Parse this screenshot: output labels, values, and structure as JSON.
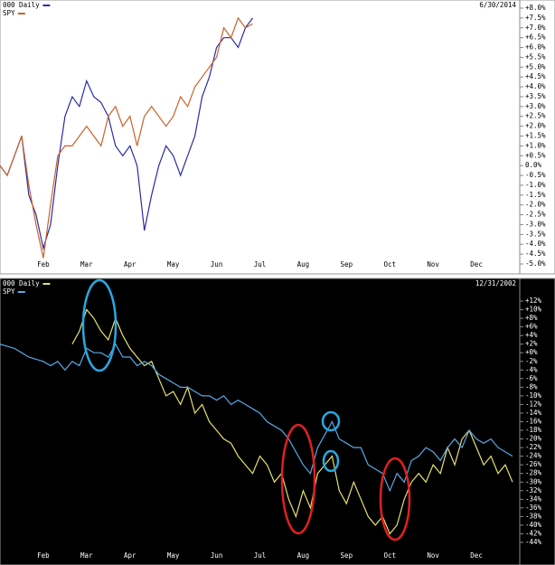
{
  "chart_data": [
    {
      "type": "line",
      "legend_title": "000 Daily",
      "date_label": "6/30/2014",
      "categories": [
        null,
        null,
        null,
        null,
        null,
        null,
        "Feb",
        "Feb",
        "Feb",
        "Feb",
        "Feb",
        "Feb",
        "Mar",
        "Mar",
        "Mar",
        "Mar",
        "Mar",
        "Mar",
        "Apr",
        "Apr",
        "Apr",
        "Apr",
        "Apr",
        "Apr",
        "May",
        "May",
        "May",
        "May",
        "May",
        "May",
        "Jun",
        "Jun",
        "Jun",
        "Jun",
        "Jun",
        "Jun",
        "Jul",
        "Jul",
        "Jul",
        "Jul",
        "Jul",
        "Jul",
        "Aug",
        "Aug",
        "Aug",
        "Aug",
        "Aug",
        "Aug",
        "Sep",
        "Sep",
        "Sep",
        "Sep",
        "Sep",
        "Sep",
        "Oct",
        "Oct",
        "Oct",
        "Oct",
        "Oct",
        "Oct",
        "Nov",
        "Nov",
        "Nov",
        "Nov",
        "Nov",
        "Nov",
        "Dec",
        "Dec",
        "Dec",
        "Dec",
        "Dec",
        "Dec"
      ],
      "series": [
        {
          "name": "000 Daily",
          "color": "#2b2ba6",
          "values": [
            0,
            -0.5,
            0.5,
            1.5,
            -1.5,
            -2.5,
            -4.2,
            -3.0,
            0,
            2.5,
            3.5,
            3.0,
            4.3,
            3.5,
            3.2,
            2.5,
            1.0,
            0.5,
            1.0,
            0.0,
            -3.3,
            -1.5,
            0.0,
            1.0,
            0.5,
            -0.5,
            0.5,
            1.5,
            3.5,
            4.5,
            6.0,
            6.5,
            6.5,
            6.0,
            7.0,
            7.5,
            null,
            null,
            null,
            null,
            null,
            null,
            null,
            null,
            null,
            null,
            null,
            null,
            null,
            null,
            null,
            null,
            null,
            null,
            null,
            null,
            null,
            null,
            null,
            null,
            null,
            null,
            null,
            null,
            null,
            null,
            null,
            null,
            null,
            null,
            null,
            null
          ]
        },
        {
          "name": "SPY",
          "color": "#c8622a",
          "values": [
            0,
            -0.5,
            0.5,
            1.5,
            -1.0,
            -3.0,
            -4.7,
            -2.0,
            0.5,
            1.0,
            1.0,
            1.5,
            2.0,
            1.5,
            1.0,
            2.5,
            3.0,
            2.0,
            2.5,
            1.0,
            2.5,
            3.0,
            2.5,
            2.0,
            2.5,
            3.5,
            3.0,
            4.0,
            4.5,
            5.0,
            5.5,
            7.0,
            6.5,
            7.5,
            7.0,
            7.2,
            null,
            null,
            null,
            null,
            null,
            null,
            null,
            null,
            null,
            null,
            null,
            null,
            null,
            null,
            null,
            null,
            null,
            null,
            null,
            null,
            null,
            null,
            null,
            null,
            null,
            null,
            null,
            null,
            null,
            null,
            null,
            null,
            null,
            null,
            null,
            null
          ]
        }
      ],
      "ylim": [
        -5.0,
        8.0
      ],
      "yticks": [
        {
          "value": 8.0,
          "label": "+8.0%"
        },
        {
          "value": 7.5,
          "label": "+7.5%"
        },
        {
          "value": 7.0,
          "label": "+7.0%"
        },
        {
          "value": 6.5,
          "label": "+6.5%"
        },
        {
          "value": 6.0,
          "label": "+6.0%"
        },
        {
          "value": 5.5,
          "label": "+5.5%"
        },
        {
          "value": 5.0,
          "label": "+5.0%"
        },
        {
          "value": 4.5,
          "label": "+4.5%"
        },
        {
          "value": 4.0,
          "label": "+4.0%"
        },
        {
          "value": 3.5,
          "label": "+3.5%"
        },
        {
          "value": 3.0,
          "label": "+3.0%"
        },
        {
          "value": 2.5,
          "label": "+2.5%"
        },
        {
          "value": 2.0,
          "label": "+2.0%"
        },
        {
          "value": 1.5,
          "label": "+1.5%"
        },
        {
          "value": 1.0,
          "label": "+1.0%"
        },
        {
          "value": 0.5,
          "label": "+0.5%"
        },
        {
          "value": 0,
          "label": "0.0%"
        },
        {
          "value": -0.5,
          "label": "-0.5%"
        },
        {
          "value": -1.0,
          "label": "-1.0%"
        },
        {
          "value": -1.5,
          "label": "-1.5%"
        },
        {
          "value": -2.0,
          "label": "-2.0%"
        },
        {
          "value": -2.5,
          "label": "-2.5%"
        },
        {
          "value": -3.0,
          "label": "-3.0%"
        },
        {
          "value": -3.5,
          "label": "-3.5%"
        },
        {
          "value": -4.0,
          "label": "-4.0%"
        },
        {
          "value": -4.5,
          "label": "-4.5%"
        },
        {
          "value": -5.0,
          "label": "-5.0%"
        }
      ],
      "background": "#ffffff",
      "text_color": "#000000"
    },
    {
      "type": "line",
      "legend_title": "000 Daily",
      "date_label": "12/31/2002",
      "categories": [
        null,
        null,
        null,
        null,
        null,
        null,
        "Feb",
        "Feb",
        "Feb",
        "Feb",
        "Feb",
        "Feb",
        "Mar",
        "Mar",
        "Mar",
        "Mar",
        "Mar",
        "Mar",
        "Apr",
        "Apr",
        "Apr",
        "Apr",
        "Apr",
        "Apr",
        "May",
        "May",
        "May",
        "May",
        "May",
        "May",
        "Jun",
        "Jun",
        "Jun",
        "Jun",
        "Jun",
        "Jun",
        "Jul",
        "Jul",
        "Jul",
        "Jul",
        "Jul",
        "Jul",
        "Aug",
        "Aug",
        "Aug",
        "Aug",
        "Aug",
        "Aug",
        "Sep",
        "Sep",
        "Sep",
        "Sep",
        "Sep",
        "Sep",
        "Oct",
        "Oct",
        "Oct",
        "Oct",
        "Oct",
        "Oct",
        "Nov",
        "Nov",
        "Nov",
        "Nov",
        "Nov",
        "Nov",
        "Dec",
        "Dec",
        "Dec",
        "Dec",
        "Dec",
        "Dec"
      ],
      "series": [
        {
          "name": "000 Daily",
          "color": "#e6e070",
          "values": [
            null,
            null,
            null,
            null,
            null,
            null,
            null,
            null,
            null,
            null,
            2,
            5,
            10,
            8,
            5,
            3,
            8,
            4,
            1,
            -1,
            -3,
            -2,
            -6,
            -10,
            -9,
            -12,
            -8,
            -14,
            -12,
            -16,
            -18,
            -20,
            -21,
            -24,
            -26,
            -28,
            -24,
            -26,
            -30,
            -28,
            -34,
            -38,
            -32,
            -36,
            -28,
            -26,
            -24,
            -32,
            -35,
            -30,
            -34,
            -38,
            -40,
            -38,
            -42,
            -40,
            -34,
            -30,
            -28,
            -30,
            -26,
            -28,
            -22,
            -26,
            -20,
            -18,
            -22,
            -26,
            -24,
            -28,
            -26,
            -30
          ]
        },
        {
          "name": "SPY",
          "color": "#5aa8e6",
          "values": [
            2,
            1.5,
            1,
            0,
            -1,
            -1.5,
            -2,
            -3,
            -2,
            -4,
            -2,
            -3,
            1,
            0,
            0,
            -1,
            2,
            -1,
            -1,
            -3,
            -2,
            -3,
            -5,
            -6,
            -7,
            -8,
            -8,
            -9,
            -10,
            -10,
            -11,
            -10,
            -12,
            -11,
            -12,
            -13,
            -14,
            -16,
            -17,
            -18,
            -20,
            -23,
            -26,
            -28,
            -22,
            -19,
            -16,
            -20,
            -21,
            -22,
            -22,
            -26,
            -27,
            -28,
            -32,
            -28,
            -30,
            -25,
            -24,
            -22,
            -23,
            -25,
            -22,
            -20,
            -22,
            -18,
            -20,
            -21,
            -20,
            -22,
            -23,
            -24
          ]
        }
      ],
      "ylim": [
        -44,
        12
      ],
      "yticks": [
        {
          "value": 12,
          "label": "+12%"
        },
        {
          "value": 10,
          "label": "+10%"
        },
        {
          "value": 8,
          "label": "+8%"
        },
        {
          "value": 6,
          "label": "+6%"
        },
        {
          "value": 4,
          "label": "+4%"
        },
        {
          "value": 2,
          "label": "+2%"
        },
        {
          "value": 0,
          "label": "+0%"
        },
        {
          "value": -2,
          "label": "-2%"
        },
        {
          "value": -4,
          "label": "-4%"
        },
        {
          "value": -6,
          "label": "-6%"
        },
        {
          "value": -8,
          "label": "-8%"
        },
        {
          "value": -10,
          "label": "-10%"
        },
        {
          "value": -12,
          "label": "-12%"
        },
        {
          "value": -14,
          "label": "-14%"
        },
        {
          "value": -16,
          "label": "-16%"
        },
        {
          "value": -18,
          "label": "-18%"
        },
        {
          "value": -20,
          "label": "-20%"
        },
        {
          "value": -22,
          "label": "-22%"
        },
        {
          "value": -24,
          "label": "-24%"
        },
        {
          "value": -26,
          "label": "-26%"
        },
        {
          "value": -28,
          "label": "-28%"
        },
        {
          "value": -30,
          "label": "-30%"
        },
        {
          "value": -32,
          "label": "-32%"
        },
        {
          "value": -34,
          "label": "-34%"
        },
        {
          "value": -36,
          "label": "-36%"
        },
        {
          "value": -38,
          "label": "-38%"
        },
        {
          "value": -40,
          "label": "-40%"
        },
        {
          "value": -42,
          "label": "-42%"
        },
        {
          "value": -44,
          "label": "-44%"
        }
      ],
      "background": "#000000",
      "text_color": "#ffffff"
    }
  ]
}
